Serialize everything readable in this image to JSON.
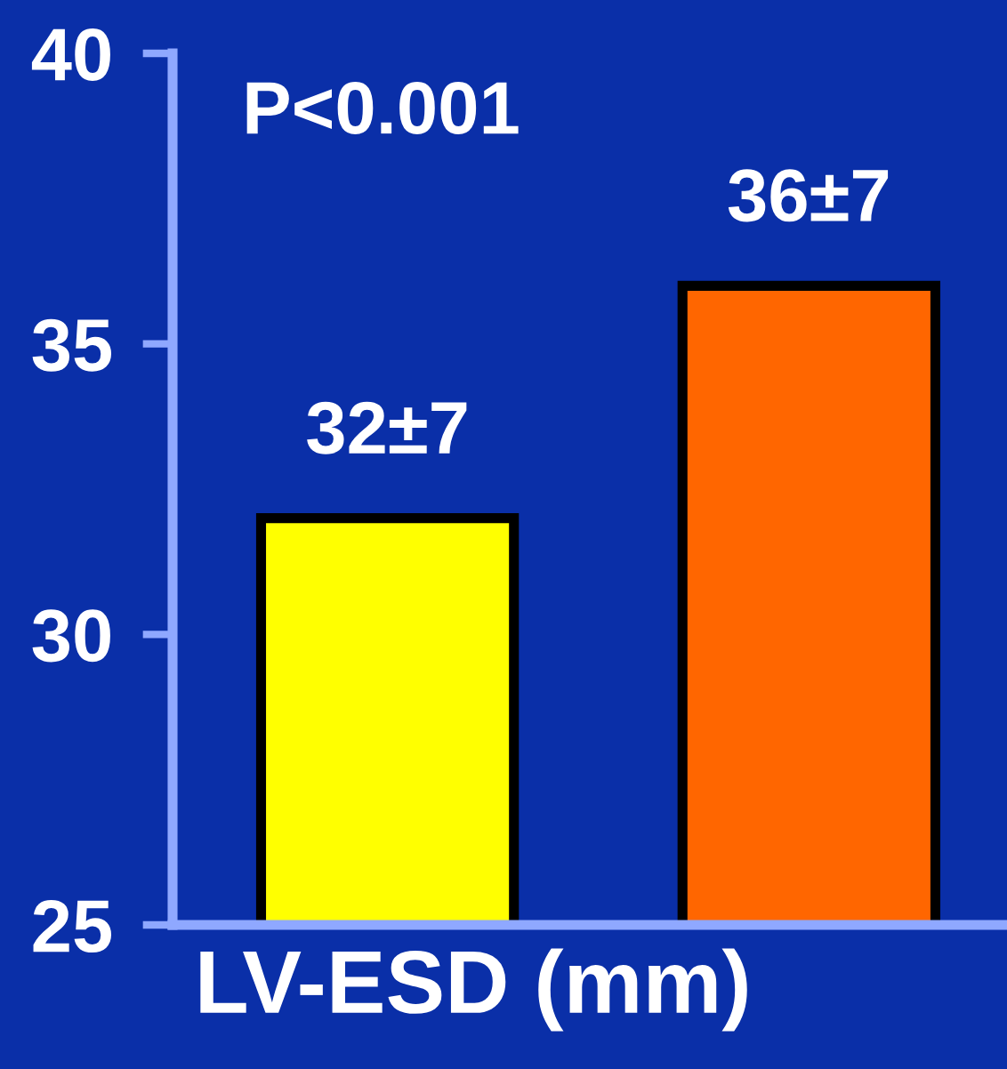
{
  "chart_data": {
    "type": "bar",
    "xlabel": "LV-ESD (mm)",
    "categories": [
      null,
      null
    ],
    "values": [
      32,
      36
    ],
    "colors": [
      "#ffff00",
      "#ff6600"
    ],
    "value_labels": [
      "32±7",
      "36±7"
    ],
    "ylim": [
      25,
      40
    ],
    "yticks": [
      25,
      30,
      35,
      40
    ],
    "annotations": [
      "P<0.001"
    ],
    "grid": false,
    "legend": false
  }
}
